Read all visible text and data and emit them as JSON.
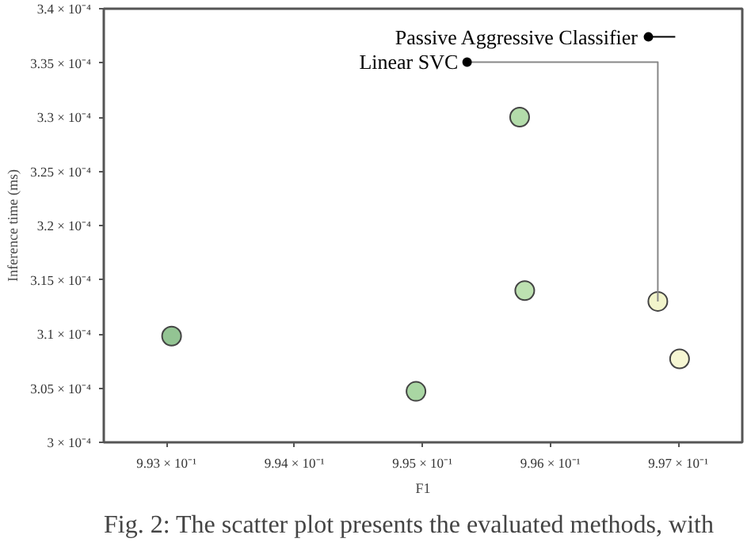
{
  "chart_data": {
    "type": "scatter",
    "xlabel": "F1",
    "ylabel": "Inference time (ms)",
    "x": [
      0.99304,
      0.99495,
      0.99576,
      0.9958,
      0.99684,
      0.99701
    ],
    "values": [
      0.0003098,
      0.0003047,
      0.00033,
      0.000314,
      0.000313,
      0.0003077
    ],
    "colors": [
      "#93c493",
      "#a9d6a3",
      "#b3dcaa",
      "#bde1b1",
      "#f2f5cb",
      "#f6f7d3"
    ],
    "marker": "circle",
    "grid": false,
    "xlim": [
      0.99251,
      0.9975
    ],
    "xticks": [
      {
        "value": 0.993,
        "label": "9.93 × 10⁻¹"
      },
      {
        "value": 0.994,
        "label": "9.94 × 10⁻¹"
      },
      {
        "value": 0.995,
        "label": "9.95 × 10⁻¹"
      },
      {
        "value": 0.996,
        "label": "9.96 × 10⁻¹"
      },
      {
        "value": 0.997,
        "label": "9.97 × 10⁻¹"
      }
    ],
    "ylim": [
      0.0003,
      0.00034
    ],
    "yticks": [
      {
        "value": 0.0003,
        "label": "3 × 10⁻⁴"
      },
      {
        "value": 0.000305,
        "label": "3.05 × 10⁻⁴"
      },
      {
        "value": 0.00031,
        "label": "3.1 × 10⁻⁴"
      },
      {
        "value": 0.000315,
        "label": "3.15 × 10⁻⁴"
      },
      {
        "value": 0.00032,
        "label": "3.2 × 10⁻⁴"
      },
      {
        "value": 0.000325,
        "label": "3.25 × 10⁻⁴"
      },
      {
        "value": 0.00033,
        "label": "3.3 × 10⁻⁴"
      },
      {
        "value": 0.000335,
        "label": "3.35 × 10⁻⁴"
      },
      {
        "value": 0.00034,
        "label": "3.4 × 10⁻⁴"
      }
    ],
    "annotations": [
      "Passive Aggressive Classifier",
      {
        "text": "Linear SVC",
        "x": 0.99684,
        "y": 0.000313
      },
      "Fig. 2: The scatter plot presents the evaluated methods, with"
    ]
  }
}
